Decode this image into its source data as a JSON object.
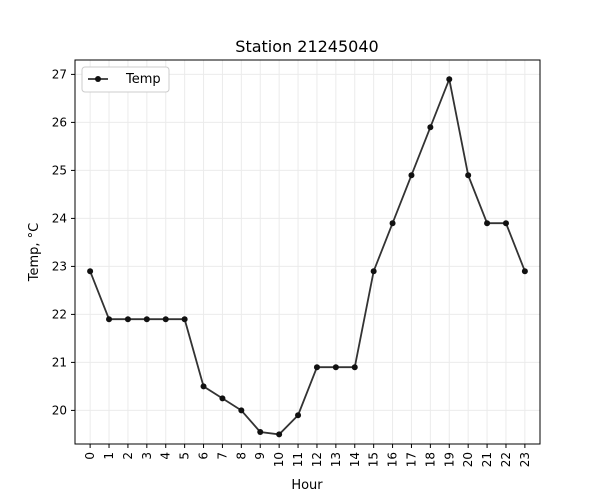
{
  "chart_data": {
    "type": "line",
    "title": "Station 21245040",
    "xlabel": "Hour",
    "ylabel": "Temp, °C",
    "x": [
      0,
      1,
      2,
      3,
      4,
      5,
      6,
      7,
      8,
      9,
      10,
      11,
      12,
      13,
      14,
      15,
      16,
      17,
      18,
      19,
      20,
      21,
      22,
      23
    ],
    "xlim": [
      -0.8,
      23.8
    ],
    "ylim": [
      19.3,
      27.3
    ],
    "yticks": [
      20,
      21,
      22,
      23,
      24,
      25,
      26,
      27
    ],
    "grid": true,
    "legend_position": "top-left",
    "series": [
      {
        "name": "Temp",
        "color": "#333333",
        "values": [
          22.9,
          21.9,
          21.9,
          21.9,
          21.9,
          21.9,
          20.5,
          20.25,
          20.0,
          19.55,
          19.5,
          19.9,
          20.9,
          20.9,
          20.9,
          22.9,
          23.9,
          24.9,
          25.9,
          26.9,
          24.9,
          23.9,
          23.9,
          22.9
        ]
      }
    ]
  }
}
